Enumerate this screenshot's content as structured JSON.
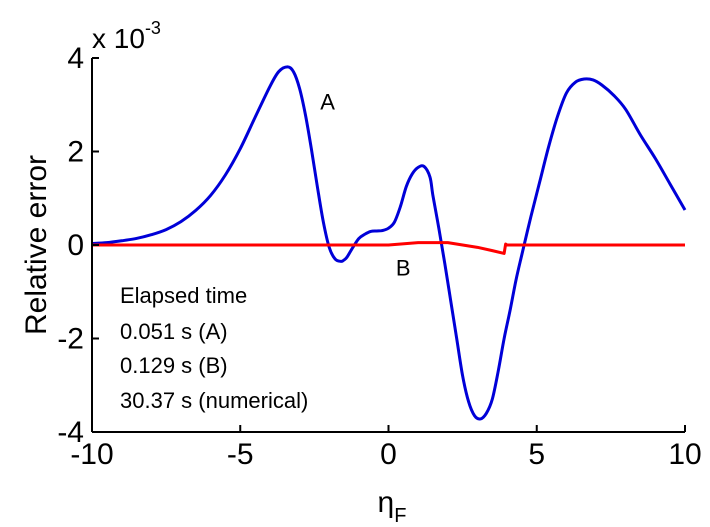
{
  "chart_data": {
    "type": "line",
    "xlabel": "η",
    "xlabel_subscript": "F",
    "ylabel": "Relative error",
    "y_multiplier": {
      "base": "x 10",
      "exponent": "-3"
    },
    "xlim": [
      -10,
      10
    ],
    "ylim": [
      -4,
      4
    ],
    "xticks": [
      -10,
      -5,
      0,
      5,
      10
    ],
    "xtick_labels": [
      "-10",
      "-5",
      "0",
      "5",
      "10"
    ],
    "yticks": [
      -4,
      -2,
      0,
      2,
      4
    ],
    "ytick_labels": [
      "-4",
      "-2",
      "0",
      "2",
      "4"
    ],
    "grid": false,
    "series": [
      {
        "name": "A",
        "color": "#0000d8",
        "x": [
          -10,
          -9.5,
          -9,
          -8.5,
          -8,
          -7.5,
          -7,
          -6.5,
          -6,
          -5.5,
          -5,
          -4.5,
          -4,
          -3.7,
          -3.4,
          -3.2,
          -3.0,
          -2.8,
          -2.6,
          -2.4,
          -2.2,
          -2.0,
          -1.8,
          -1.6,
          -1.5,
          -1.4,
          -1.2,
          -1.0,
          -0.8,
          -0.6,
          -0.4,
          -0.2,
          0.0,
          0.2,
          0.4,
          0.6,
          0.8,
          1.0,
          1.2,
          1.4,
          1.5,
          1.7,
          1.9,
          2.1,
          2.3,
          2.5,
          2.7,
          2.9,
          3.1,
          3.3,
          3.5,
          3.7,
          3.9,
          4.1,
          4.3,
          4.5,
          4.8,
          5.1,
          5.4,
          5.7,
          6.0,
          6.3,
          6.6,
          6.9,
          7.2,
          7.6,
          8.0,
          8.5,
          9.0,
          9.5,
          10.0
        ],
        "y": [
          0.03,
          0.05,
          0.09,
          0.14,
          0.22,
          0.33,
          0.5,
          0.74,
          1.06,
          1.5,
          2.06,
          2.73,
          3.39,
          3.71,
          3.81,
          3.7,
          3.35,
          2.78,
          2.05,
          1.25,
          0.5,
          -0.05,
          -0.3,
          -0.35,
          -0.32,
          -0.26,
          -0.05,
          0.14,
          0.23,
          0.29,
          0.3,
          0.31,
          0.36,
          0.49,
          0.82,
          1.25,
          1.52,
          1.66,
          1.68,
          1.45,
          1.05,
          0.35,
          -0.4,
          -1.2,
          -2.0,
          -2.8,
          -3.35,
          -3.65,
          -3.72,
          -3.6,
          -3.3,
          -2.7,
          -2.0,
          -1.4,
          -0.75,
          -0.2,
          0.6,
          1.35,
          2.1,
          2.75,
          3.25,
          3.48,
          3.55,
          3.53,
          3.42,
          3.2,
          2.9,
          2.35,
          1.85,
          1.3,
          0.75
        ]
      },
      {
        "name": "B",
        "color": "#ff0000",
        "x": [
          -10,
          -5,
          -1,
          0,
          1,
          2,
          2.5,
          3,
          3.5,
          3.9,
          3.95,
          4.0,
          6,
          8,
          10
        ],
        "y": [
          0,
          0,
          0,
          0,
          0.05,
          0.05,
          0.0,
          -0.05,
          -0.12,
          -0.18,
          0.02,
          0.0,
          0.0,
          0.0,
          0.0
        ]
      }
    ],
    "curve_labels": [
      {
        "text": "A",
        "x": -2.3,
        "y": 2.9
      },
      {
        "text": "B",
        "x": 0.25,
        "y": -0.65
      }
    ],
    "annotations": [
      "Elapsed time",
      "0.051 s (A)",
      "0.129 s (B)",
      "30.37 s (numerical)"
    ]
  }
}
